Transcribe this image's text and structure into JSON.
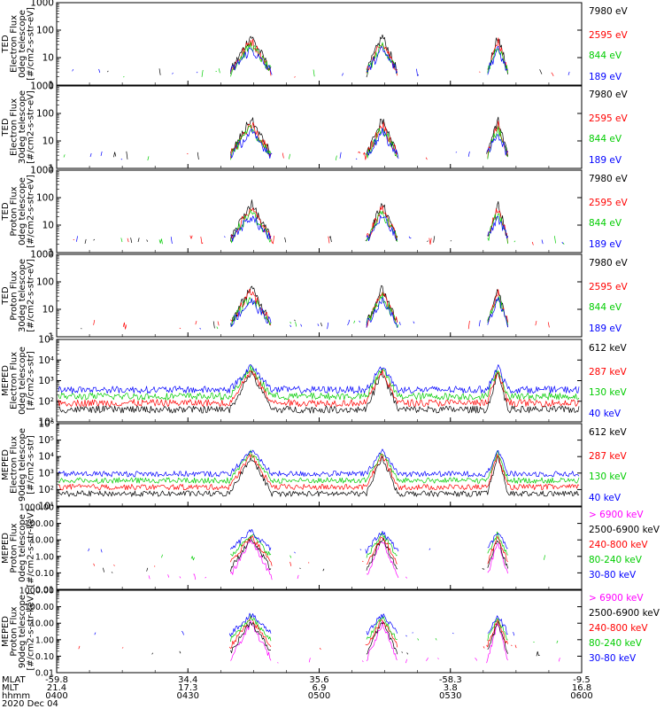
{
  "chart_data": [
    {
      "type": "line",
      "ylabel": [
        "TED",
        "Electron Flux",
        "0deg telescope",
        "[#/cm2-s-str-eV]"
      ],
      "yscale": "log",
      "ylim": [
        1,
        1000
      ],
      "yticks": [
        "1",
        "10",
        "100",
        "1000"
      ],
      "legend": [
        {
          "label": "7980 eV",
          "color": "#000000"
        },
        {
          "label": "2595 eV",
          "color": "#ff0000"
        },
        {
          "label": "844 eV",
          "color": "#00cc00"
        },
        {
          "label": "189 eV",
          "color": "#0000ff"
        }
      ]
    },
    {
      "type": "line",
      "ylabel": [
        "TED",
        "Electron Flux",
        "30deg telescope",
        "[#/cm2-s-str-eV]"
      ],
      "yscale": "log",
      "ylim": [
        1,
        1000
      ],
      "yticks": [
        "1",
        "10",
        "100",
        "1000"
      ],
      "legend": [
        {
          "label": "7980 eV",
          "color": "#000000"
        },
        {
          "label": "2595 eV",
          "color": "#ff0000"
        },
        {
          "label": "844 eV",
          "color": "#00cc00"
        },
        {
          "label": "189 eV",
          "color": "#0000ff"
        }
      ]
    },
    {
      "type": "line",
      "ylabel": [
        "TED",
        "Proton Flux",
        "0deg telescope",
        "[#/cm2-s-str-eV]"
      ],
      "yscale": "log",
      "ylim": [
        1,
        1000
      ],
      "yticks": [
        "1",
        "10",
        "100",
        "1000"
      ],
      "legend": [
        {
          "label": "7980 eV",
          "color": "#000000"
        },
        {
          "label": "2595 eV",
          "color": "#ff0000"
        },
        {
          "label": "844 eV",
          "color": "#00cc00"
        },
        {
          "label": "189 eV",
          "color": "#0000ff"
        }
      ]
    },
    {
      "type": "line",
      "ylabel": [
        "TED",
        "Proton Flux",
        "30deg telescope",
        "[#/cm2-s-str-eV]"
      ],
      "yscale": "log",
      "ylim": [
        1,
        1000
      ],
      "yticks": [
        "1",
        "10",
        "100",
        "1000"
      ],
      "legend": [
        {
          "label": "7980 eV",
          "color": "#000000"
        },
        {
          "label": "2595 eV",
          "color": "#ff0000"
        },
        {
          "label": "844 eV",
          "color": "#00cc00"
        },
        {
          "label": "189 eV",
          "color": "#0000ff"
        }
      ]
    },
    {
      "type": "line",
      "ylabel": [
        "MEPED",
        "Electron Flux",
        "0deg telescope",
        "[#/cm2-s-str]"
      ],
      "yscale": "log",
      "ylim": [
        10,
        100000
      ],
      "yticks": [
        "10¹",
        "10²",
        "10³",
        "10⁴",
        "10⁵"
      ],
      "legend": [
        {
          "label": "612 keV",
          "color": "#000000"
        },
        {
          "label": "287 keV",
          "color": "#ff0000"
        },
        {
          "label": "130 keV",
          "color": "#00cc00"
        },
        {
          "label": "40 keV",
          "color": "#0000ff"
        }
      ]
    },
    {
      "type": "line",
      "ylabel": [
        "MEPED",
        "Electron Flux",
        "90deg telescope",
        "[#/cm2-s-str]"
      ],
      "yscale": "log",
      "ylim": [
        10,
        1000000
      ],
      "yticks": [
        "10¹",
        "10²",
        "10³",
        "10⁴",
        "10⁵",
        "10⁶"
      ],
      "legend": [
        {
          "label": "612 keV",
          "color": "#000000"
        },
        {
          "label": "287 keV",
          "color": "#ff0000"
        },
        {
          "label": "130 keV",
          "color": "#00cc00"
        },
        {
          "label": "40 keV",
          "color": "#0000ff"
        }
      ]
    },
    {
      "type": "line",
      "ylabel": [
        "MEPED",
        "Proton Flux",
        "0deg telescope",
        "[#/cm2-s-str-keV]"
      ],
      "yscale": "log",
      "ylim": [
        0.01,
        1000
      ],
      "yticks": [
        "0.01",
        "0.10",
        "1.00",
        "10.00",
        "100.00",
        "1000.00"
      ],
      "legend": [
        {
          "label": "> 6900 keV",
          "color": "#ff00ff"
        },
        {
          "label": "2500-6900 keV",
          "color": "#000000"
        },
        {
          "label": "240-800 keV",
          "color": "#ff0000"
        },
        {
          "label": "80-240 keV",
          "color": "#00cc00"
        },
        {
          "label": "30-80 keV",
          "color": "#0000ff"
        }
      ]
    },
    {
      "type": "line",
      "ylabel": [
        "MEPED",
        "Proton Flux",
        "90deg telescope",
        "[#/cm2-s-str-keV]"
      ],
      "yscale": "log",
      "ylim": [
        0.01,
        1000
      ],
      "yticks": [
        "0.01",
        "0.10",
        "1.00",
        "10.00",
        "100.00",
        "1000.00"
      ],
      "legend": [
        {
          "label": "> 6900 keV",
          "color": "#ff00ff"
        },
        {
          "label": "2500-6900 keV",
          "color": "#000000"
        },
        {
          "label": "240-800 keV",
          "color": "#ff0000"
        },
        {
          "label": "80-240 keV",
          "color": "#00cc00"
        },
        {
          "label": "30-80 keV",
          "color": "#0000ff"
        }
      ]
    }
  ],
  "x_axis": {
    "row_labels": [
      "MLAT",
      "MLT",
      "hhmm",
      "2020 Dec 04"
    ],
    "ticks": [
      {
        "mlat": "-59.8",
        "mlt": "21.4",
        "hhmm": "0400"
      },
      {
        "mlat": "34.4",
        "mlt": "17.3",
        "hhmm": "0430"
      },
      {
        "mlat": "35.6",
        "mlt": "6.9",
        "hhmm": "0500"
      },
      {
        "mlat": "-58.3",
        "mlt": "3.8",
        "hhmm": "0530"
      },
      {
        "mlat": "-9.5",
        "mlt": "16.8",
        "hhmm": "0600"
      }
    ]
  }
}
